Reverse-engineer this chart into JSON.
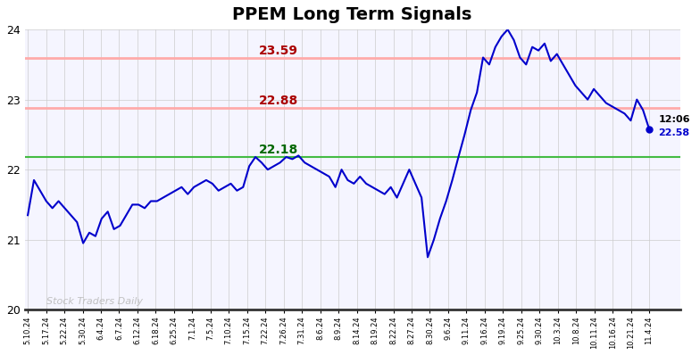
{
  "title": "PPEM Long Term Signals",
  "title_fontsize": 14,
  "title_fontweight": "bold",
  "ylim": [
    20,
    24
  ],
  "yticks": [
    20,
    21,
    22,
    23,
    24
  ],
  "plot_bg_color": "#f5f5ff",
  "fig_bg_color": "#ffffff",
  "line_color": "#0000cc",
  "line_width": 1.5,
  "hline_green": 22.18,
  "hline_green_color": "#44bb44",
  "hline_red1": 22.88,
  "hline_red1_color": "#ffaaaa",
  "hline_red2": 23.59,
  "hline_red2_color": "#ffaaaa",
  "label_23_59": "23.59",
  "label_22_88": "22.88",
  "label_22_18": "22.18",
  "label_color_red": "#aa0000",
  "label_color_green": "#006600",
  "watermark": "Stock Traders Daily",
  "watermark_color": "#bbbbbb",
  "end_label_time": "12:06",
  "end_label_value": "22.58",
  "end_label_color": "#0000cc",
  "end_dot_color": "#0000cc",
  "xtick_labels": [
    "5.10.24",
    "5.17.24",
    "5.22.24",
    "5.30.24",
    "6.4.24",
    "6.7.24",
    "6.12.24",
    "6.18.24",
    "6.25.24",
    "7.1.24",
    "7.5.24",
    "7.10.24",
    "7.15.24",
    "7.22.24",
    "7.26.24",
    "7.31.24",
    "8.6.24",
    "8.9.24",
    "8.14.24",
    "8.19.24",
    "8.22.24",
    "8.27.24",
    "8.30.24",
    "9.6.24",
    "9.11.24",
    "9.16.24",
    "9.19.24",
    "9.25.24",
    "9.30.24",
    "10.3.24",
    "10.8.24",
    "10.11.24",
    "10.16.24",
    "10.21.24",
    "11.4.24"
  ],
  "series": [
    21.35,
    21.85,
    21.7,
    21.55,
    21.45,
    21.55,
    21.45,
    21.35,
    21.25,
    20.95,
    21.1,
    21.05,
    21.3,
    21.4,
    21.15,
    21.2,
    21.35,
    21.5,
    21.5,
    21.45,
    21.55,
    21.55,
    21.6,
    21.65,
    21.7,
    21.75,
    21.65,
    21.75,
    21.8,
    21.85,
    21.8,
    21.7,
    21.75,
    21.8,
    21.7,
    21.75,
    22.05,
    22.18,
    22.1,
    22.0,
    22.05,
    22.1,
    22.18,
    22.15,
    22.2,
    22.1,
    22.05,
    22.0,
    21.95,
    21.9,
    21.75,
    22.0,
    21.85,
    21.8,
    21.9,
    21.8,
    21.75,
    21.7,
    21.65,
    21.75,
    21.6,
    21.8,
    22.0,
    21.8,
    21.6,
    20.75,
    21.0,
    21.3,
    21.55,
    21.85,
    22.18,
    22.5,
    22.85,
    23.1,
    23.6,
    23.5,
    23.75,
    23.9,
    24.0,
    23.85,
    23.6,
    23.5,
    23.75,
    23.7,
    23.8,
    23.55,
    23.65,
    23.5,
    23.35,
    23.2,
    23.1,
    23.0,
    23.15,
    23.05,
    22.95,
    22.9,
    22.85,
    22.8,
    22.7,
    23.0,
    22.85,
    22.58
  ]
}
